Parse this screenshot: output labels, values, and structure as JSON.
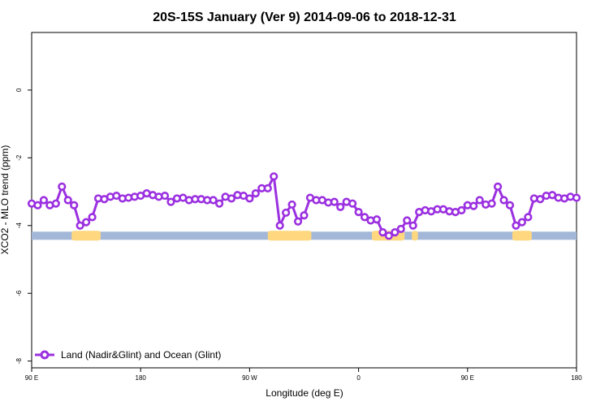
{
  "chart_data": {
    "type": "line",
    "title": "20S-15S January (Ver 9)   2014-09-06 to 2018-12-31",
    "xlabel": "Longitude (deg E)",
    "ylabel": "XCO2 - MLO trend (ppm)",
    "xlim": [
      90,
      540
    ],
    "ylim": [
      -8.2,
      1.7
    ],
    "x_tick_values": [
      90,
      180,
      270,
      360,
      450,
      540
    ],
    "x_tick_labels": [
      "90 E",
      "180",
      "90 W",
      "0",
      "90 E",
      "180"
    ],
    "y_tick_values": [
      0,
      -2,
      -4,
      -6,
      -8
    ],
    "y_tick_labels": [
      "0",
      "-2",
      "-4",
      "-6",
      "-8"
    ],
    "grid": false,
    "legend_position": "bottom-left",
    "colors": {
      "series": "#9b30e0",
      "ocean_band": "#a3b8d8",
      "land_band": "#ffd77f"
    },
    "coverage_band": {
      "y": -4.3,
      "ocean_range": [
        90,
        540
      ],
      "land_ranges": [
        [
          123,
          147
        ],
        [
          285,
          321
        ],
        [
          371,
          398
        ],
        [
          404,
          409
        ],
        [
          487,
          503
        ]
      ]
    },
    "series": [
      {
        "name": "Land (Nadir&Glint) and Ocean (Glint)",
        "x": [
          90,
          95,
          100,
          105,
          110,
          115,
          120,
          125,
          130,
          135,
          140,
          145,
          150,
          155,
          160,
          165,
          170,
          175,
          180,
          185,
          190,
          195,
          200,
          205,
          210,
          215,
          220,
          225,
          230,
          235,
          240,
          245,
          250,
          255,
          260,
          265,
          270,
          275,
          280,
          285,
          290,
          295,
          300,
          305,
          310,
          315,
          320,
          325,
          330,
          335,
          340,
          345,
          350,
          355,
          360,
          365,
          370,
          375,
          380,
          385,
          390,
          395,
          400,
          405,
          410,
          415,
          420,
          425,
          430,
          435,
          440,
          445,
          450,
          455,
          460,
          465,
          470,
          475,
          480,
          485,
          490,
          495,
          500,
          505,
          510,
          515,
          520,
          525,
          530,
          535,
          540
        ],
        "y": [
          -3.35,
          -3.4,
          -3.25,
          -3.4,
          -3.35,
          -2.85,
          -3.25,
          -3.4,
          -4.0,
          -3.9,
          -3.75,
          -3.2,
          -3.22,
          -3.15,
          -3.12,
          -3.2,
          -3.18,
          -3.15,
          -3.12,
          -3.05,
          -3.1,
          -3.15,
          -3.12,
          -3.3,
          -3.2,
          -3.18,
          -3.25,
          -3.22,
          -3.22,
          -3.25,
          -3.25,
          -3.35,
          -3.15,
          -3.2,
          -3.1,
          -3.12,
          -3.2,
          -3.05,
          -2.9,
          -2.9,
          -2.55,
          -4.0,
          -3.62,
          -3.38,
          -3.88,
          -3.7,
          -3.18,
          -3.25,
          -3.25,
          -3.32,
          -3.3,
          -3.45,
          -3.3,
          -3.35,
          -3.6,
          -3.75,
          -3.85,
          -3.82,
          -4.2,
          -4.3,
          -4.2,
          -4.1,
          -3.85,
          -4.0,
          -3.6,
          -3.55,
          -3.58,
          -3.52,
          -3.52,
          -3.58,
          -3.6,
          -3.55,
          -3.4,
          -3.42,
          -3.25,
          -3.38,
          -3.35,
          -2.85,
          -3.25,
          -3.4,
          -4.0,
          -3.9,
          -3.75,
          -3.2,
          -3.22,
          -3.12,
          -3.1,
          -3.18,
          -3.2,
          -3.15,
          -3.18
        ]
      }
    ]
  }
}
